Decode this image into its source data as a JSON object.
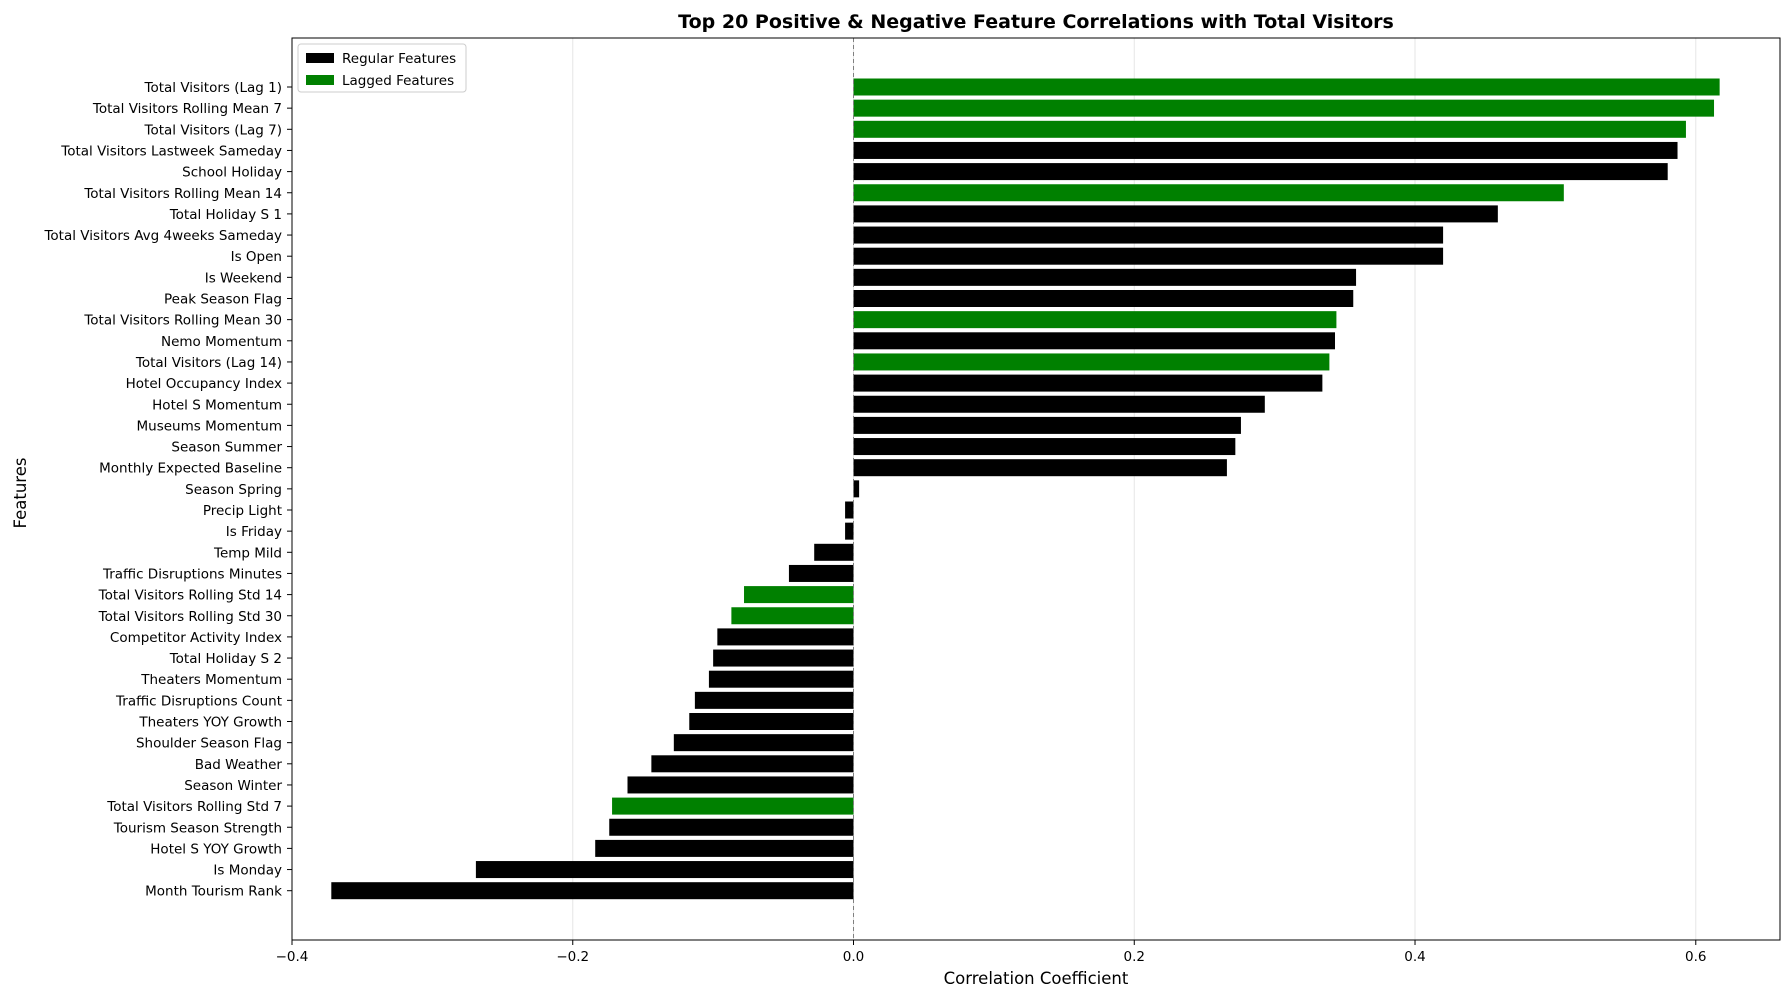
{
  "chart_data": {
    "type": "bar",
    "orientation": "horizontal",
    "title": "Top 20 Positive & Negative Feature Correlations with Total Visitors",
    "xlabel": "Correlation Coefficient",
    "ylabel": "Features",
    "xlim": [
      -0.4,
      0.66
    ],
    "xticks": [
      -0.4,
      -0.2,
      0.0,
      0.2,
      0.4,
      0.6
    ],
    "xtick_labels": [
      "−0.4",
      "−0.2",
      "0.0",
      "0.2",
      "0.4",
      "0.6"
    ],
    "grid": "x",
    "zero_line": "dashed",
    "legend": {
      "position": "top-left",
      "entries": [
        {
          "label": "Regular Features",
          "color": "#000000"
        },
        {
          "label": "Lagged Features",
          "color": "#008000"
        }
      ]
    },
    "colors": {
      "regular": "#000000",
      "lagged": "#008000"
    },
    "bars": [
      {
        "label": "Total Visitors (Lag 1)",
        "value": 0.617,
        "group": "lagged"
      },
      {
        "label": "Total Visitors Rolling Mean 7",
        "value": 0.613,
        "group": "lagged"
      },
      {
        "label": "Total Visitors (Lag 7)",
        "value": 0.593,
        "group": "lagged"
      },
      {
        "label": "Total Visitors Lastweek Sameday",
        "value": 0.587,
        "group": "regular"
      },
      {
        "label": "School Holiday",
        "value": 0.58,
        "group": "regular"
      },
      {
        "label": "Total Visitors Rolling Mean 14",
        "value": 0.506,
        "group": "lagged"
      },
      {
        "label": "Total Holiday S 1",
        "value": 0.459,
        "group": "regular"
      },
      {
        "label": "Total Visitors Avg 4weeks Sameday",
        "value": 0.42,
        "group": "regular"
      },
      {
        "label": "Is Open",
        "value": 0.42,
        "group": "regular"
      },
      {
        "label": "Is Weekend",
        "value": 0.358,
        "group": "regular"
      },
      {
        "label": "Peak Season Flag",
        "value": 0.356,
        "group": "regular"
      },
      {
        "label": "Total Visitors Rolling Mean 30",
        "value": 0.344,
        "group": "lagged"
      },
      {
        "label": "Nemo Momentum",
        "value": 0.343,
        "group": "regular"
      },
      {
        "label": "Total Visitors (Lag 14)",
        "value": 0.339,
        "group": "lagged"
      },
      {
        "label": "Hotel Occupancy Index",
        "value": 0.334,
        "group": "regular"
      },
      {
        "label": "Hotel S Momentum",
        "value": 0.293,
        "group": "regular"
      },
      {
        "label": "Museums Momentum",
        "value": 0.276,
        "group": "regular"
      },
      {
        "label": "Season Summer",
        "value": 0.272,
        "group": "regular"
      },
      {
        "label": "Monthly Expected Baseline",
        "value": 0.266,
        "group": "regular"
      },
      {
        "label": "Season Spring",
        "value": 0.004,
        "group": "regular"
      },
      {
        "label": "Precip Light",
        "value": -0.006,
        "group": "regular"
      },
      {
        "label": "Is Friday",
        "value": -0.006,
        "group": "regular"
      },
      {
        "label": "Temp Mild",
        "value": -0.028,
        "group": "regular"
      },
      {
        "label": "Traffic Disruptions Minutes",
        "value": -0.046,
        "group": "regular"
      },
      {
        "label": "Total Visitors Rolling Std 14",
        "value": -0.078,
        "group": "lagged"
      },
      {
        "label": "Total Visitors Rolling Std 30",
        "value": -0.087,
        "group": "lagged"
      },
      {
        "label": "Competitor Activity Index",
        "value": -0.097,
        "group": "regular"
      },
      {
        "label": "Total Holiday S 2",
        "value": -0.1,
        "group": "regular"
      },
      {
        "label": "Theaters Momentum",
        "value": -0.103,
        "group": "regular"
      },
      {
        "label": "Traffic Disruptions Count",
        "value": -0.113,
        "group": "regular"
      },
      {
        "label": "Theaters YOY Growth",
        "value": -0.117,
        "group": "regular"
      },
      {
        "label": "Shoulder Season Flag",
        "value": -0.128,
        "group": "regular"
      },
      {
        "label": "Bad Weather",
        "value": -0.144,
        "group": "regular"
      },
      {
        "label": "Season Winter",
        "value": -0.161,
        "group": "regular"
      },
      {
        "label": "Total Visitors Rolling Std 7",
        "value": -0.172,
        "group": "lagged"
      },
      {
        "label": "Tourism Season Strength",
        "value": -0.174,
        "group": "regular"
      },
      {
        "label": "Hotel S YOY Growth",
        "value": -0.184,
        "group": "regular"
      },
      {
        "label": "Is Monday",
        "value": -0.269,
        "group": "regular"
      },
      {
        "label": "Month Tourism Rank",
        "value": -0.372,
        "group": "regular"
      }
    ]
  }
}
